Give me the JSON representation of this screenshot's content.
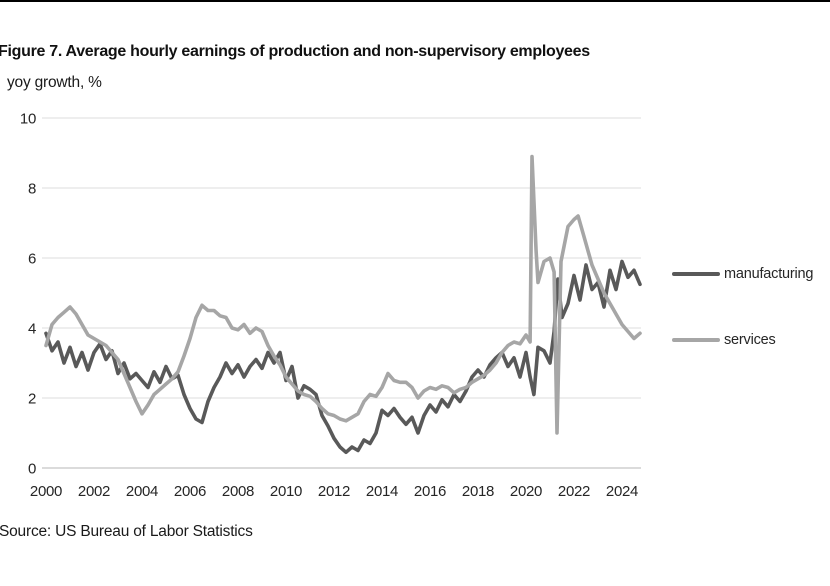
{
  "figure": {
    "title": "Figure 7. Average hourly earnings of production and non-supervisory employees",
    "subtitle": "yoy growth, %",
    "source": "Source: US Bureau of Labor Statistics"
  },
  "legend": [
    {
      "label": "manufacturing",
      "color": "#595959"
    },
    {
      "label": "services",
      "color": "#a6a6a6"
    }
  ],
  "colors": {
    "manufacturing": "#595959",
    "services": "#a6a6a6",
    "gridline": "#e9e9e9",
    "axis": "#cfcfcf",
    "text": "#262626"
  },
  "chart_data": {
    "type": "line",
    "title": "Figure 7. Average hourly earnings of production and non-supervisory employees",
    "xlabel": "",
    "ylabel": "yoy growth, %",
    "ylim": [
      0,
      10
    ],
    "yticks": [
      0,
      2,
      4,
      6,
      8,
      10
    ],
    "xticks": [
      2000,
      2002,
      2004,
      2006,
      2008,
      2010,
      2012,
      2014,
      2016,
      2018,
      2020,
      2022,
      2024
    ],
    "xlim": [
      2000,
      2024.9
    ],
    "grid": "horizontal",
    "legend_position": "right",
    "series": [
      {
        "name": "manufacturing",
        "color": "#595959",
        "points": [
          [
            2000.0,
            3.85
          ],
          [
            2000.25,
            3.35
          ],
          [
            2000.5,
            3.6
          ],
          [
            2000.75,
            3.0
          ],
          [
            2001.0,
            3.45
          ],
          [
            2001.25,
            2.9
          ],
          [
            2001.5,
            3.3
          ],
          [
            2001.75,
            2.8
          ],
          [
            2002.0,
            3.3
          ],
          [
            2002.25,
            3.55
          ],
          [
            2002.5,
            3.1
          ],
          [
            2002.75,
            3.35
          ],
          [
            2003.0,
            2.7
          ],
          [
            2003.25,
            3.0
          ],
          [
            2003.5,
            2.55
          ],
          [
            2003.75,
            2.7
          ],
          [
            2004.0,
            2.5
          ],
          [
            2004.25,
            2.3
          ],
          [
            2004.5,
            2.75
          ],
          [
            2004.75,
            2.45
          ],
          [
            2005.0,
            2.9
          ],
          [
            2005.25,
            2.55
          ],
          [
            2005.5,
            2.65
          ],
          [
            2005.75,
            2.1
          ],
          [
            2006.0,
            1.7
          ],
          [
            2006.25,
            1.4
          ],
          [
            2006.5,
            1.3
          ],
          [
            2006.75,
            1.9
          ],
          [
            2007.0,
            2.3
          ],
          [
            2007.25,
            2.6
          ],
          [
            2007.5,
            3.0
          ],
          [
            2007.75,
            2.7
          ],
          [
            2008.0,
            2.95
          ],
          [
            2008.25,
            2.6
          ],
          [
            2008.5,
            2.9
          ],
          [
            2008.75,
            3.1
          ],
          [
            2009.0,
            2.85
          ],
          [
            2009.25,
            3.3
          ],
          [
            2009.5,
            3.0
          ],
          [
            2009.75,
            3.3
          ],
          [
            2010.0,
            2.5
          ],
          [
            2010.25,
            2.9
          ],
          [
            2010.5,
            2.0
          ],
          [
            2010.75,
            2.35
          ],
          [
            2011.0,
            2.25
          ],
          [
            2011.25,
            2.1
          ],
          [
            2011.5,
            1.5
          ],
          [
            2011.75,
            1.2
          ],
          [
            2012.0,
            0.85
          ],
          [
            2012.25,
            0.6
          ],
          [
            2012.5,
            0.45
          ],
          [
            2012.75,
            0.6
          ],
          [
            2013.0,
            0.5
          ],
          [
            2013.25,
            0.8
          ],
          [
            2013.5,
            0.7
          ],
          [
            2013.75,
            1.0
          ],
          [
            2014.0,
            1.65
          ],
          [
            2014.25,
            1.5
          ],
          [
            2014.5,
            1.7
          ],
          [
            2014.75,
            1.45
          ],
          [
            2015.0,
            1.25
          ],
          [
            2015.25,
            1.45
          ],
          [
            2015.5,
            1.0
          ],
          [
            2015.75,
            1.5
          ],
          [
            2016.0,
            1.8
          ],
          [
            2016.25,
            1.6
          ],
          [
            2016.5,
            1.95
          ],
          [
            2016.75,
            1.75
          ],
          [
            2017.0,
            2.1
          ],
          [
            2017.25,
            1.9
          ],
          [
            2017.5,
            2.2
          ],
          [
            2017.75,
            2.6
          ],
          [
            2018.0,
            2.8
          ],
          [
            2018.25,
            2.6
          ],
          [
            2018.5,
            2.95
          ],
          [
            2018.75,
            3.15
          ],
          [
            2019.0,
            3.3
          ],
          [
            2019.25,
            2.9
          ],
          [
            2019.5,
            3.15
          ],
          [
            2019.75,
            2.6
          ],
          [
            2020.0,
            3.3
          ],
          [
            2020.17,
            2.6
          ],
          [
            2020.33,
            2.1
          ],
          [
            2020.5,
            3.45
          ],
          [
            2020.75,
            3.35
          ],
          [
            2021.0,
            3.0
          ],
          [
            2021.17,
            3.9
          ],
          [
            2021.33,
            5.4
          ],
          [
            2021.5,
            4.3
          ],
          [
            2021.75,
            4.7
          ],
          [
            2022.0,
            5.5
          ],
          [
            2022.25,
            4.8
          ],
          [
            2022.5,
            5.8
          ],
          [
            2022.75,
            5.1
          ],
          [
            2023.0,
            5.3
          ],
          [
            2023.25,
            4.6
          ],
          [
            2023.5,
            5.65
          ],
          [
            2023.75,
            5.1
          ],
          [
            2024.0,
            5.9
          ],
          [
            2024.25,
            5.45
          ],
          [
            2024.5,
            5.65
          ],
          [
            2024.75,
            5.25
          ]
        ]
      },
      {
        "name": "services",
        "color": "#a6a6a6",
        "points": [
          [
            2000.0,
            3.5
          ],
          [
            2000.25,
            4.1
          ],
          [
            2000.5,
            4.3
          ],
          [
            2000.75,
            4.45
          ],
          [
            2001.0,
            4.6
          ],
          [
            2001.25,
            4.4
          ],
          [
            2001.5,
            4.1
          ],
          [
            2001.75,
            3.8
          ],
          [
            2002.0,
            3.7
          ],
          [
            2002.25,
            3.6
          ],
          [
            2002.5,
            3.5
          ],
          [
            2002.75,
            3.3
          ],
          [
            2003.0,
            3.1
          ],
          [
            2003.25,
            2.7
          ],
          [
            2003.5,
            2.3
          ],
          [
            2003.75,
            1.9
          ],
          [
            2004.0,
            1.55
          ],
          [
            2004.25,
            1.8
          ],
          [
            2004.5,
            2.1
          ],
          [
            2004.75,
            2.25
          ],
          [
            2005.0,
            2.4
          ],
          [
            2005.25,
            2.55
          ],
          [
            2005.5,
            2.75
          ],
          [
            2005.75,
            3.2
          ],
          [
            2006.0,
            3.7
          ],
          [
            2006.25,
            4.3
          ],
          [
            2006.5,
            4.65
          ],
          [
            2006.75,
            4.5
          ],
          [
            2007.0,
            4.5
          ],
          [
            2007.25,
            4.35
          ],
          [
            2007.5,
            4.3
          ],
          [
            2007.75,
            4.0
          ],
          [
            2008.0,
            3.95
          ],
          [
            2008.25,
            4.1
          ],
          [
            2008.5,
            3.85
          ],
          [
            2008.75,
            4.0
          ],
          [
            2009.0,
            3.9
          ],
          [
            2009.25,
            3.5
          ],
          [
            2009.5,
            3.2
          ],
          [
            2009.75,
            2.95
          ],
          [
            2010.0,
            2.6
          ],
          [
            2010.25,
            2.4
          ],
          [
            2010.5,
            2.2
          ],
          [
            2010.75,
            2.1
          ],
          [
            2011.0,
            2.05
          ],
          [
            2011.25,
            1.9
          ],
          [
            2011.5,
            1.7
          ],
          [
            2011.75,
            1.55
          ],
          [
            2012.0,
            1.5
          ],
          [
            2012.25,
            1.4
          ],
          [
            2012.5,
            1.35
          ],
          [
            2012.75,
            1.45
          ],
          [
            2013.0,
            1.55
          ],
          [
            2013.25,
            1.9
          ],
          [
            2013.5,
            2.1
          ],
          [
            2013.75,
            2.05
          ],
          [
            2014.0,
            2.3
          ],
          [
            2014.25,
            2.7
          ],
          [
            2014.5,
            2.5
          ],
          [
            2014.75,
            2.45
          ],
          [
            2015.0,
            2.45
          ],
          [
            2015.25,
            2.3
          ],
          [
            2015.5,
            2.0
          ],
          [
            2015.75,
            2.2
          ],
          [
            2016.0,
            2.3
          ],
          [
            2016.25,
            2.25
          ],
          [
            2016.5,
            2.35
          ],
          [
            2016.75,
            2.3
          ],
          [
            2017.0,
            2.15
          ],
          [
            2017.25,
            2.25
          ],
          [
            2017.5,
            2.3
          ],
          [
            2017.75,
            2.45
          ],
          [
            2018.0,
            2.55
          ],
          [
            2018.25,
            2.65
          ],
          [
            2018.5,
            2.8
          ],
          [
            2018.75,
            3.0
          ],
          [
            2019.0,
            3.3
          ],
          [
            2019.25,
            3.5
          ],
          [
            2019.5,
            3.6
          ],
          [
            2019.75,
            3.55
          ],
          [
            2020.0,
            3.8
          ],
          [
            2020.17,
            3.6
          ],
          [
            2020.25,
            8.9
          ],
          [
            2020.42,
            6.2
          ],
          [
            2020.5,
            5.3
          ],
          [
            2020.75,
            5.9
          ],
          [
            2021.0,
            6.0
          ],
          [
            2021.17,
            5.6
          ],
          [
            2021.29,
            1.0
          ],
          [
            2021.46,
            5.9
          ],
          [
            2021.75,
            6.9
          ],
          [
            2022.0,
            7.1
          ],
          [
            2022.17,
            7.2
          ],
          [
            2022.42,
            6.6
          ],
          [
            2022.75,
            5.8
          ],
          [
            2023.0,
            5.4
          ],
          [
            2023.25,
            5.0
          ],
          [
            2023.5,
            4.7
          ],
          [
            2023.75,
            4.4
          ],
          [
            2024.0,
            4.1
          ],
          [
            2024.25,
            3.9
          ],
          [
            2024.5,
            3.7
          ],
          [
            2024.75,
            3.85
          ]
        ]
      }
    ]
  }
}
